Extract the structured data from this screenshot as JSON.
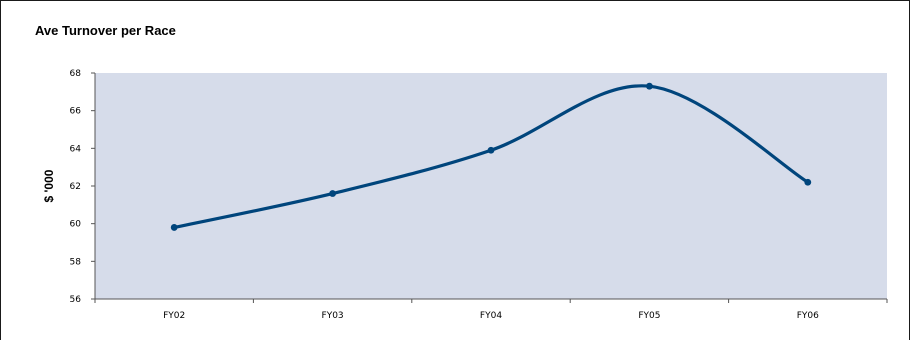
{
  "chart_data": {
    "type": "line",
    "title": "Ave Turnover per Race",
    "xlabel": "",
    "ylabel": "$ '000",
    "categories": [
      "FY02",
      "FY03",
      "FY04",
      "FY05",
      "FY06"
    ],
    "series": [
      {
        "values": [
          59.8,
          61.6,
          63.9,
          67.3,
          62.2
        ]
      }
    ],
    "ylim": [
      56,
      68
    ],
    "yticks": [
      56,
      58,
      60,
      62,
      64,
      66,
      68
    ],
    "grid": false,
    "smooth": true,
    "colors": {
      "line": "#00457c",
      "plot_background": "#d6dcea"
    }
  }
}
